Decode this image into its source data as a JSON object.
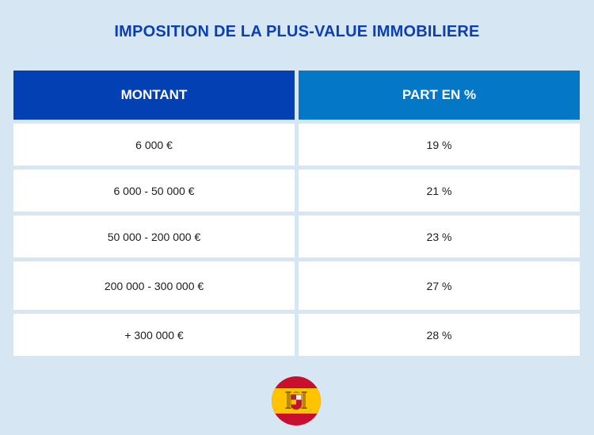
{
  "title": "IMPOSITION DE LA PLUS-VALUE IMMOBILIERE",
  "table": {
    "headers": [
      "MONTANT",
      "PART EN %"
    ],
    "rows": [
      [
        "6 000 €",
        "19 %"
      ],
      [
        "6 000 - 50 000 €",
        "21 %"
      ],
      [
        "50 000 - 200 000 €",
        "23 %"
      ],
      [
        "200 000 - 300 000 €",
        "27 %"
      ],
      [
        "+ 300 000 €",
        "28 %"
      ]
    ]
  },
  "colors": {
    "background": "#d6e6f3",
    "title": "#0a3fb5",
    "header_left": "#0340b3",
    "header_right": "#0478c6",
    "flag_red": "#c8102e",
    "flag_yellow": "#ffc400"
  },
  "icons": {
    "flag": "spain-flag-icon"
  }
}
